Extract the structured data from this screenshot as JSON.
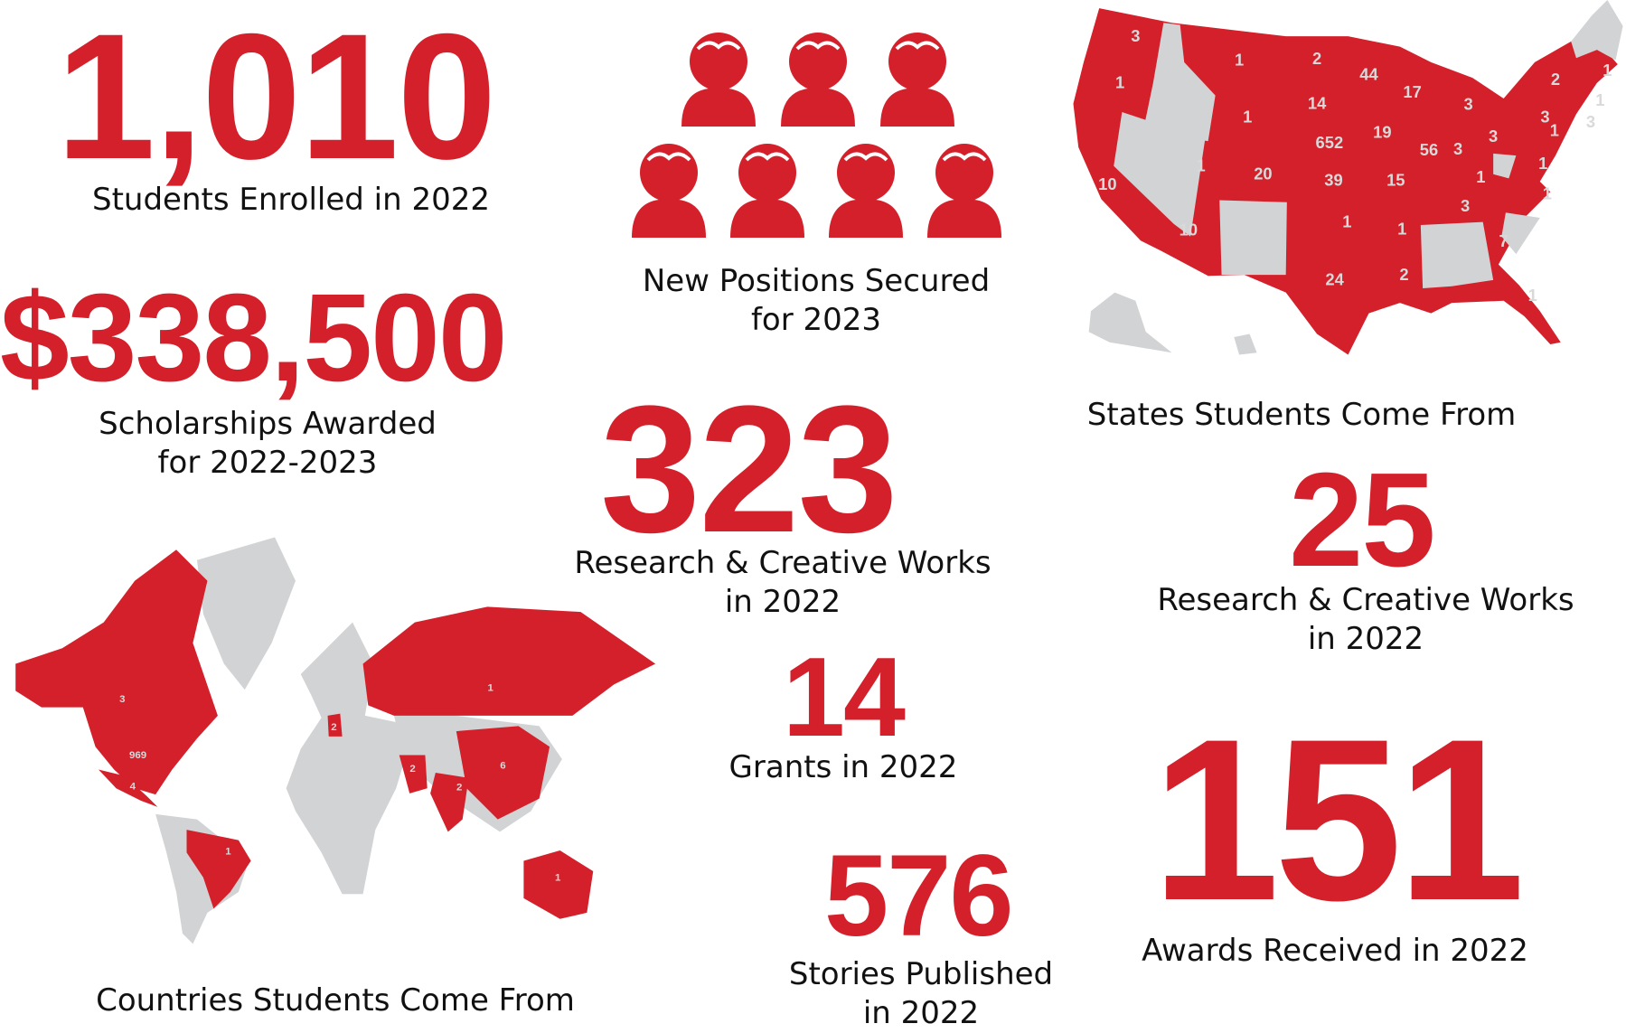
{
  "colors": {
    "accent": "#d4202a",
    "inactive": "#d1d3d4",
    "text": "#111111"
  },
  "stats": {
    "enrolled": {
      "value": "1,010",
      "label": "Students Enrolled in 2022"
    },
    "scholarships": {
      "value": "$338,500",
      "label_line1": "Scholarships Awarded",
      "label_line2": "for 2022-2023"
    },
    "positions": {
      "label_line1": "New Positions Secured",
      "label_line2": "for 2023",
      "icon_count": 7,
      "icon": "person-icon"
    },
    "research_works": {
      "value": "323",
      "label_line1": "Research & Creative Works",
      "label_line2": "in 2022"
    },
    "grants": {
      "value": "14",
      "label": "Grants in 2022"
    },
    "stories": {
      "value": "576",
      "label_line1": "Stories Published",
      "label_line2": "in 2022"
    },
    "research_works_2": {
      "value": "25",
      "label_line1": "Research & Creative Works",
      "label_line2": "in 2022"
    },
    "awards": {
      "value": "151",
      "label": "Awards Received in 2022"
    }
  },
  "us_map": {
    "title": "States Students Come From",
    "values": [
      {
        "region": "WA",
        "value": "3"
      },
      {
        "region": "MT",
        "value": "1"
      },
      {
        "region": "ND",
        "value": "2"
      },
      {
        "region": "MN",
        "value": "44"
      },
      {
        "region": "WI",
        "value": "17"
      },
      {
        "region": "NY",
        "value": "2"
      },
      {
        "region": "OR",
        "value": "1"
      },
      {
        "region": "SD",
        "value": "14"
      },
      {
        "region": "WY",
        "value": "1"
      },
      {
        "region": "MI",
        "value": "3"
      },
      {
        "region": "PA",
        "value": "3"
      },
      {
        "region": "IA",
        "value": "19"
      },
      {
        "region": "NE",
        "value": "652"
      },
      {
        "region": "IL",
        "value": "56"
      },
      {
        "region": "IN",
        "value": "3"
      },
      {
        "region": "OH",
        "value": "3"
      },
      {
        "region": "MD",
        "value": "1"
      },
      {
        "region": "UT",
        "value": "1"
      },
      {
        "region": "CO",
        "value": "20"
      },
      {
        "region": "KS",
        "value": "39"
      },
      {
        "region": "MO",
        "value": "15"
      },
      {
        "region": "KY",
        "value": "1"
      },
      {
        "region": "VA",
        "value": "1"
      },
      {
        "region": "CA",
        "value": "10"
      },
      {
        "region": "TN",
        "value": "3"
      },
      {
        "region": "NC",
        "value": "1"
      },
      {
        "region": "AZ",
        "value": "10"
      },
      {
        "region": "OK",
        "value": "1"
      },
      {
        "region": "AR",
        "value": "1"
      },
      {
        "region": "GA",
        "value": "7"
      },
      {
        "region": "LA",
        "value": "2"
      },
      {
        "region": "TX",
        "value": "24"
      },
      {
        "region": "FL",
        "value": "1"
      },
      {
        "region": "NH",
        "value": "1"
      },
      {
        "region": "RI",
        "value": "1"
      },
      {
        "region": "DE",
        "value": "3"
      }
    ]
  },
  "world_map": {
    "title": "Countries Students Come From",
    "values": [
      {
        "region": "Canada",
        "value": "3"
      },
      {
        "region": "United States",
        "value": "969"
      },
      {
        "region": "Mexico",
        "value": "4"
      },
      {
        "region": "Brazil",
        "value": "1"
      },
      {
        "region": "Russia",
        "value": "1"
      },
      {
        "region": "China",
        "value": "6"
      },
      {
        "region": "Iran",
        "value": "2"
      },
      {
        "region": "India",
        "value": "2"
      },
      {
        "region": "Australia",
        "value": "1"
      },
      {
        "region": "Germany",
        "value": "2"
      }
    ]
  }
}
